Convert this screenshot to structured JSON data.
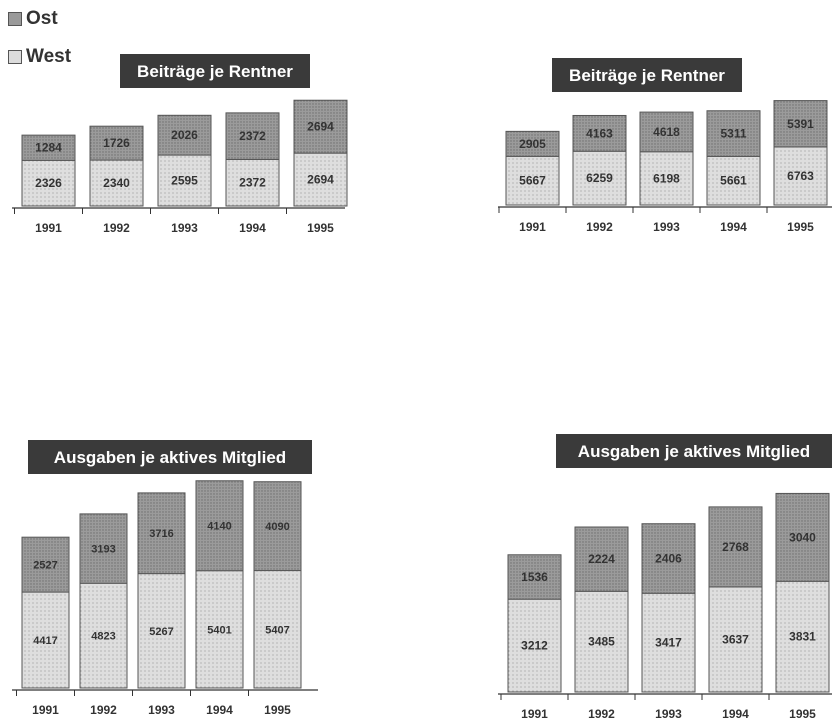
{
  "legend": {
    "ost_label": "Ost",
    "west_label": "West"
  },
  "colors": {
    "ost": "#9b9b9b",
    "west": "#dedede",
    "title_bg": "#3a3a3a",
    "title_text": "#ffffff"
  },
  "chart_data": [
    {
      "type": "bar",
      "stacked": true,
      "title": "Beiträge je Rentner",
      "categories": [
        "1991",
        "1992",
        "1993",
        "1994",
        "1995"
      ],
      "series": [
        {
          "name": "West",
          "values": [
            2326,
            2340,
            2595,
            2372,
            2694
          ]
        },
        {
          "name": "Ost",
          "values": [
            1284,
            1726,
            2026,
            2372,
            2694
          ]
        }
      ]
    },
    {
      "type": "bar",
      "stacked": true,
      "title": "Beiträge je Rentner",
      "categories": [
        "1991",
        "1992",
        "1993",
        "1994",
        "1995"
      ],
      "series": [
        {
          "name": "West",
          "values": [
            5667,
            6259,
            6198,
            5661,
            6763
          ]
        },
        {
          "name": "Ost",
          "values": [
            2905,
            4163,
            4618,
            5311,
            5391
          ]
        }
      ]
    },
    {
      "type": "bar",
      "stacked": true,
      "title": "Ausgaben je aktives Mitglied",
      "categories": [
        "1991",
        "1992",
        "1993",
        "1994",
        "1995"
      ],
      "series": [
        {
          "name": "West",
          "values": [
            4417,
            4823,
            5267,
            5401,
            5407
          ]
        },
        {
          "name": "Ost",
          "values": [
            2527,
            3193,
            3716,
            4140,
            4090
          ]
        }
      ]
    },
    {
      "type": "bar",
      "stacked": true,
      "title": "Ausgaben je aktives Mitglied",
      "categories": [
        "1991",
        "1992",
        "1993",
        "1994",
        "1995"
      ],
      "series": [
        {
          "name": "West",
          "values": [
            3212,
            3485,
            3417,
            3637,
            3831
          ]
        },
        {
          "name": "Ost",
          "values": [
            1536,
            2224,
            2406,
            2768,
            3040
          ]
        }
      ]
    }
  ]
}
